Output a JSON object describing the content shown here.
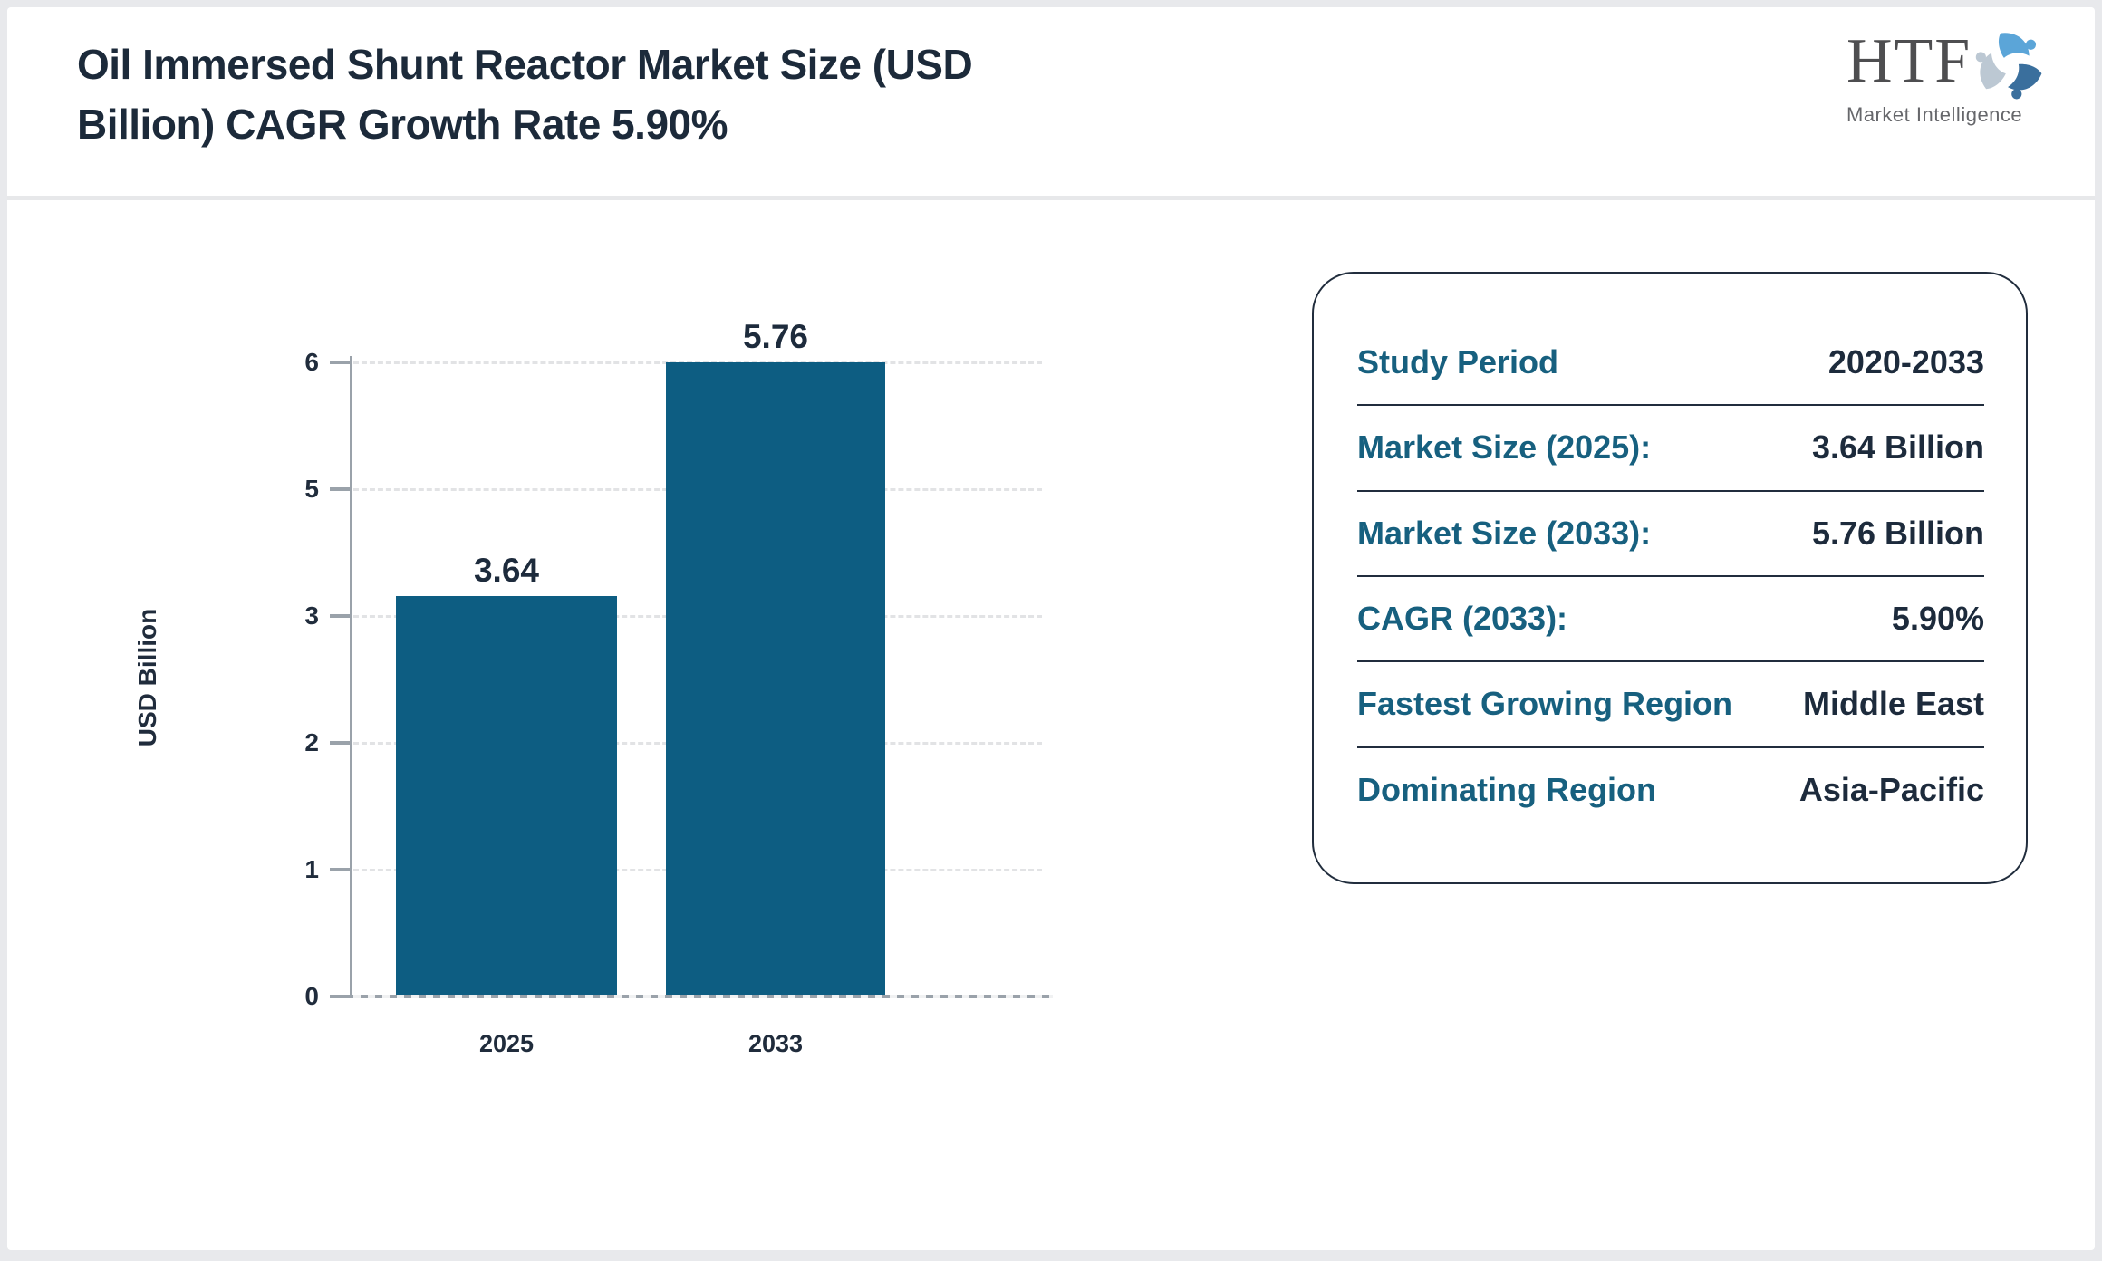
{
  "header": {
    "title": "Oil Immersed Shunt Reactor Market Size (USD Billion) CAGR Growth Rate 5.90%",
    "title_lines": [
      "Oil Immersed Shunt Reactor Market Size (USD",
      "Billion) CAGR Growth Rate 5.90%"
    ]
  },
  "logo": {
    "name": "HTF",
    "tagline": "Market Intelligence",
    "colors": {
      "light_blue": "#5ba5d8",
      "steel_blue": "#3a6f9d",
      "gray_blue": "#bcc8d3"
    }
  },
  "chart_data": {
    "type": "bar",
    "categories": [
      "2025",
      "2033"
    ],
    "values": [
      3.64,
      5.76
    ],
    "value_labels": [
      "3.64",
      "5.76"
    ],
    "series_name": "Market Size (USD Billion)",
    "title": "Oil Immersed Shunt Reactor Market Size (USD Billion) CAGR Growth Rate 5.90%",
    "xlabel": "",
    "ylabel": "USD Billion",
    "ytick_labels_top_to_bottom": [
      "6",
      "5",
      "3",
      "2",
      "1",
      "0"
    ],
    "ylim": [
      0,
      6
    ],
    "grid": "horizontal dashed",
    "legend": "none",
    "bar_color": "#0d5d82"
  },
  "panel": {
    "rows": [
      {
        "label": "Study Period",
        "value": "2020-2033"
      },
      {
        "label": "Market Size (2025):",
        "value": "3.64 Billion"
      },
      {
        "label": "Market Size (2033):",
        "value": "5.76 Billion"
      },
      {
        "label": "CAGR (2033):",
        "value": "5.90%"
      },
      {
        "label": "Fastest Growing Region",
        "value": "Middle East"
      },
      {
        "label": "Dominating Region",
        "value": "Asia-Pacific"
      }
    ]
  }
}
